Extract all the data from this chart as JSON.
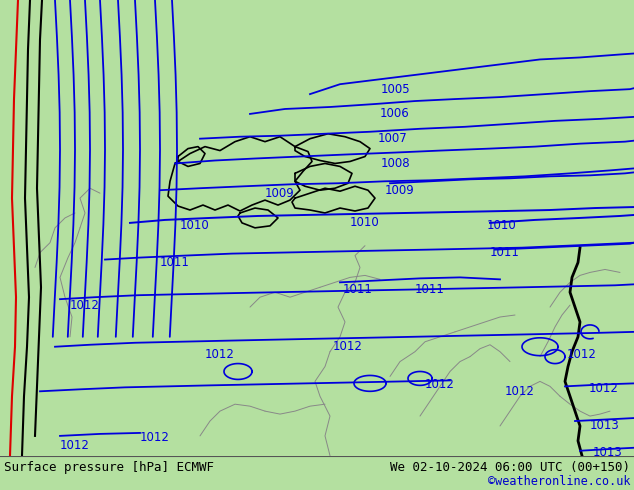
{
  "title_left": "Surface pressure [hPa] ECMWF",
  "title_right": "We 02-10-2024 06:00 UTC (00+150)",
  "credit": "©weatheronline.co.uk",
  "credit_color": "#0000cc",
  "bg_color_sea": "#c8c8d4",
  "bg_color_land": "#b4e0a0",
  "contour_color_blue": "#0000dd",
  "contour_color_black": "#000000",
  "contour_color_red": "#dd0000",
  "border_color_dark": "#000000",
  "border_color_gray": "#888888",
  "bottom_bar_color": "#c8e8c0",
  "bottom_text_color": "#000000",
  "figsize": [
    6.34,
    4.9
  ],
  "dpi": 100
}
